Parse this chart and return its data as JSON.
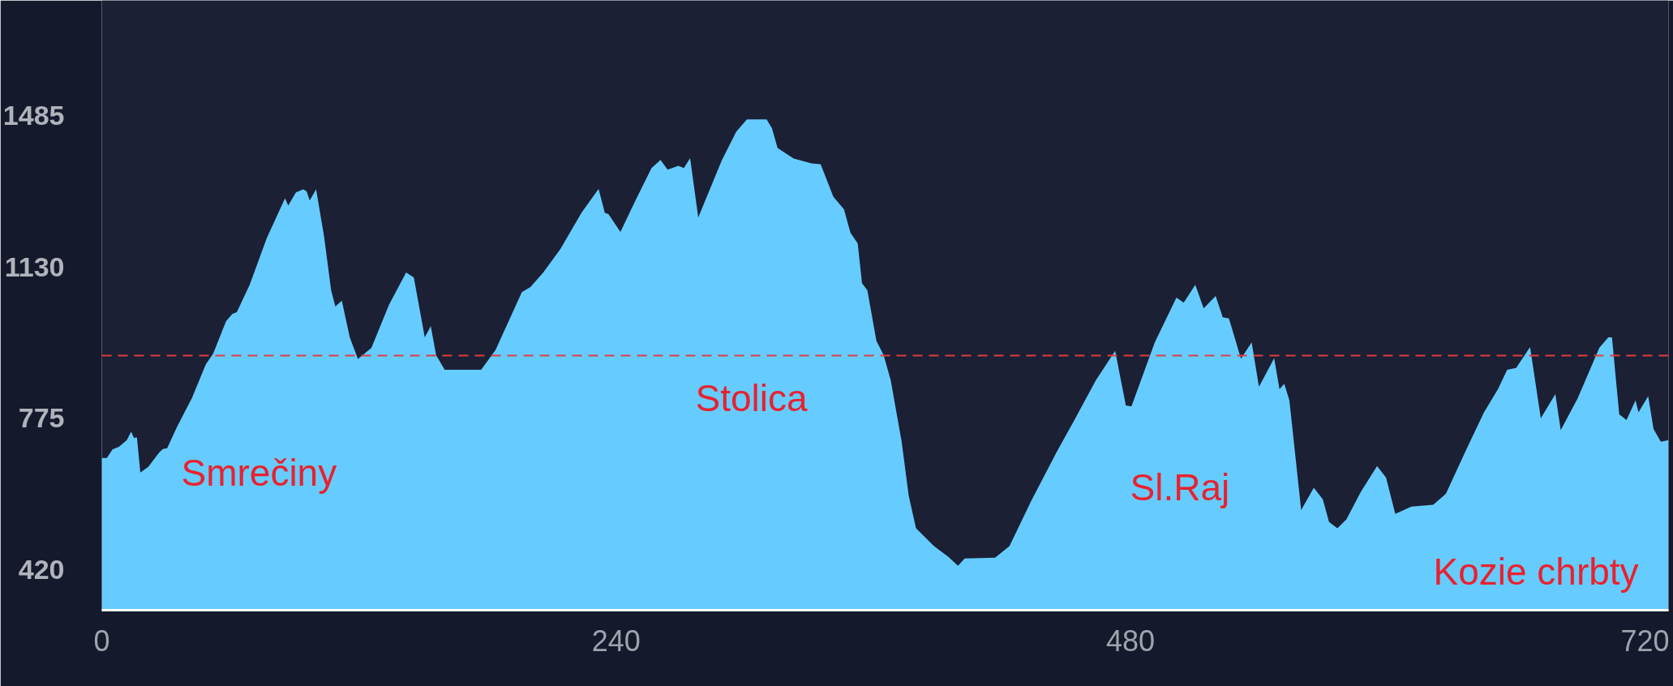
{
  "chart_data": {
    "type": "area",
    "color": "#66ccff",
    "x": [
      0,
      2.4,
      5,
      8,
      11.7,
      13.7,
      15,
      16.4,
      18,
      21.7,
      26.8,
      28.5,
      30.5,
      35,
      42,
      48.6,
      52,
      58,
      61,
      63,
      69,
      77,
      85.5,
      87,
      90.6,
      94,
      95.6,
      97,
      100,
      103.7,
      107,
      109,
      112,
      115.7,
      119.5,
      125.8,
      134,
      142,
      145.6,
      150.7,
      153.5,
      156,
      160,
      177,
      183.7,
      196,
      200,
      206,
      214,
      223.8,
      231.8,
      234.7,
      236.4,
      242,
      249,
      256.5,
      260.7,
      264,
      269,
      271.6,
      274.5,
      278.3,
      289.2,
      296,
      301,
      310.2,
      312.7,
      315.3,
      322.8,
      331.2,
      335.4,
      341.3,
      346.3,
      349.3,
      352.7,
      354.7,
      357.2,
      361.4,
      364.8,
      368.1,
      373.2,
      376.5,
      379.9,
      388.3,
      395,
      399.5,
      402.6,
      416.8,
      423.5,
      433.6,
      445.4,
      453.8,
      463.8,
      472.8,
      477.8,
      480.4,
      491.3,
      501.4,
      504.8,
      510.2,
      514.1,
      519.7,
      523,
      525.9,
      531.5,
      536.5,
      539.9,
      547,
      549.5,
      551.7,
      554.1,
      559.6,
      565.5,
      569.7,
      572.6,
      576.5,
      580.7,
      587.4,
      595,
      599.2,
      603.5,
      611,
      621.2,
      627.1,
      636.4,
      644.8,
      651.5,
      655.7,
      659.9,
      666.4,
      671.4,
      678.2,
      680.7,
      688.6,
      698.7,
      702.9,
      704.6,
      708,
      711.4,
      715.6,
      717,
      721.5,
      724,
      727.4,
      731
    ],
    "values": [
      682,
      682,
      702,
      708,
      724,
      744,
      729,
      730,
      648,
      661,
      695,
      703,
      705,
      754,
      822,
      902,
      927,
      1003,
      1020,
      1024,
      1088,
      1198,
      1291,
      1274,
      1305,
      1312,
      1307,
      1286,
      1312,
      1202,
      1075,
      1037,
      1051,
      965,
      914,
      940,
      1041,
      1117,
      1105,
      965,
      991,
      923,
      889,
      889,
      935,
      1071,
      1083,
      1117,
      1172,
      1257,
      1313,
      1257,
      1254,
      1212,
      1286,
      1362,
      1381,
      1358,
      1367,
      1362,
      1385,
      1246,
      1379,
      1447,
      1476,
      1476,
      1455,
      1409,
      1384,
      1373,
      1371,
      1295,
      1265,
      1210,
      1185,
      1092,
      1075,
      957,
      923,
      864,
      720,
      593,
      517,
      475,
      450,
      429,
      446,
      448,
      475,
      581,
      695,
      771,
      864,
      933,
      805,
      803,
      953,
      1058,
      1046,
      1088,
      1033,
      1062,
      1012,
      1009,
      915,
      953,
      849,
      916,
      843,
      856,
      817,
      560,
      612,
      585,
      532,
      517,
      538,
      602,
      663,
      636,
      551,
      568,
      572,
      598,
      699,
      788,
      844,
      889,
      893,
      942,
      775,
      832,
      747,
      822,
      940,
      965,
      965,
      784,
      771,
      817,
      789,
      827,
      750,
      720,
      724
    ],
    "xlim": [
      0,
      731
    ],
    "ylim": [
      325,
      1755
    ],
    "xticks": [
      0,
      240,
      480,
      720
    ],
    "yticks": [
      420,
      775,
      1130,
      1485
    ],
    "grid": false,
    "ref_lines": [
      {
        "axis": "y",
        "value": 922,
        "color": "#e03c3c",
        "line_style": "dashed"
      }
    ],
    "annotations": [
      "Smrečiny",
      "Stolica",
      "Sl.Raj",
      "Kozie chrbty"
    ]
  }
}
